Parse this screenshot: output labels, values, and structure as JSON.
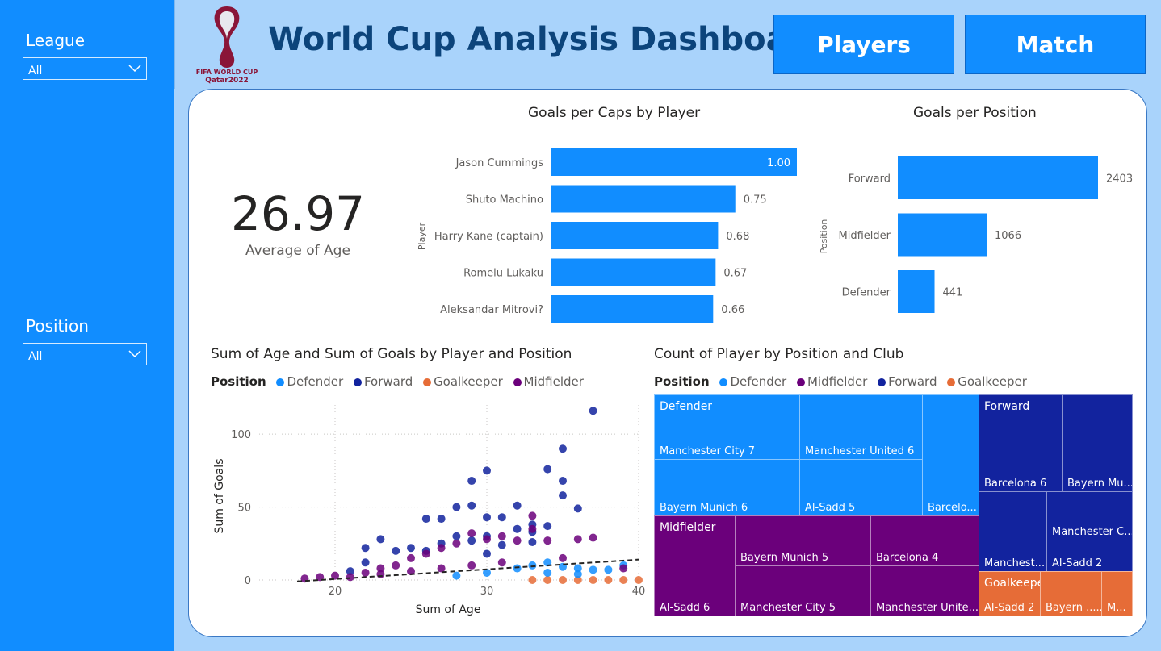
{
  "sidebar": {
    "slicers": [
      {
        "title": "League",
        "value": "All"
      },
      {
        "title": "Position",
        "value": "All"
      }
    ]
  },
  "header": {
    "logo_text_1": "FIFA WORLD CUP",
    "logo_text_2": "Qatar2022",
    "title": "World Cup Analysis Dashboard",
    "nav": [
      "Players",
      "Match"
    ]
  },
  "kpi": {
    "value": "26.97",
    "label": "Average of Age"
  },
  "goals_per_caps": {
    "title": "Goals per Caps by Player",
    "axis_label": "Player",
    "color": "#118dff",
    "players": [
      "Jason Cummings",
      "Shuto Machino",
      "Harry Kane (captain)",
      "Romelu Lukaku",
      "Aleksandar Mitrovi?"
    ],
    "values": [
      1.0,
      0.75,
      0.68,
      0.67,
      0.66
    ],
    "labels": [
      "1.00",
      "0.75",
      "0.68",
      "0.67",
      "0.66"
    ]
  },
  "goals_per_position": {
    "title": "Goals per Position",
    "axis_label": "Position",
    "color": "#118dff",
    "positions": [
      "Forward",
      "Midfielder",
      "Defender"
    ],
    "values": [
      2403,
      1066,
      441
    ],
    "labels": [
      "2403",
      "1066",
      "441"
    ]
  },
  "scatter": {
    "title": "Sum of Age and Sum of Goals by Player and Position",
    "legend_title": "Position",
    "legend": [
      {
        "name": "Defender",
        "color": "#118dff"
      },
      {
        "name": "Forward",
        "color": "#12239e"
      },
      {
        "name": "Goalkeeper",
        "color": "#e66c37"
      },
      {
        "name": "Midfielder",
        "color": "#6b007b"
      }
    ],
    "xlabel": "Sum of Age",
    "ylabel": "Sum of Goals",
    "x_ticks": [
      "20",
      "30",
      "40"
    ],
    "y_ticks": [
      "0",
      "50",
      "100"
    ]
  },
  "treemap": {
    "title": "Count of Player by Position and Club",
    "legend_title": "Position",
    "legend": [
      {
        "name": "Defender",
        "color": "#118dff"
      },
      {
        "name": "Midfielder",
        "color": "#6b007b"
      },
      {
        "name": "Forward",
        "color": "#12239e"
      },
      {
        "name": "Goalkeeper",
        "color": "#e66c37"
      }
    ],
    "groups": [
      "Defender",
      "Forward",
      "Midfielder",
      "Goalkeeper"
    ],
    "cells": {
      "def_mc": "Manchester City 7",
      "def_mu": "Manchester United 6",
      "def_bm": "Bayern Munich 6",
      "def_as": "Al-Sadd 5",
      "def_ba": "Barcelo...",
      "fwd_ba": "Barcelona 6",
      "fwd_bm": "Bayern Mu...",
      "fwd_mc": "Manchester C...",
      "fwd_mn": "Manchest...",
      "fwd_as": "Al-Sadd 2",
      "mid_bm": "Bayern Munich 5",
      "mid_ba": "Barcelona 4",
      "mid_as": "Al-Sadd 6",
      "mid_mc": "Manchester City 5",
      "mid_mu": "Manchester Unite...",
      "gk_as": "Al-Sadd 2",
      "gk_bm": "Bayern ......",
      "gk_m": "M..."
    }
  },
  "chart_data": [
    {
      "type": "bar",
      "title": "Goals per Caps by Player",
      "ylabel": "Player",
      "categories": [
        "Jason Cummings",
        "Shuto Machino",
        "Harry Kane (captain)",
        "Romelu Lukaku",
        "Aleksandar Mitrovi?"
      ],
      "values": [
        1.0,
        0.75,
        0.68,
        0.67,
        0.66
      ]
    },
    {
      "type": "bar",
      "title": "Goals per Position",
      "ylabel": "Position",
      "categories": [
        "Forward",
        "Midfielder",
        "Defender"
      ],
      "values": [
        2403,
        1066,
        441
      ]
    },
    {
      "type": "scatter",
      "title": "Sum of Age and Sum of Goals by Player and Position",
      "xlabel": "Sum of Age",
      "ylabel": "Sum of Goals",
      "xlim": [
        15,
        40
      ],
      "ylim": [
        0,
        120
      ],
      "series": [
        {
          "name": "Forward",
          "x": [
            37,
            30,
            35,
            29,
            34,
            35,
            32,
            30,
            35,
            33,
            28,
            29,
            26,
            27,
            31,
            33,
            34,
            36,
            30,
            32,
            28,
            25,
            24,
            22,
            23,
            27,
            29,
            31,
            26,
            30,
            33,
            21,
            22
          ],
          "y": [
            116,
            75,
            90,
            68,
            76,
            68,
            51,
            43,
            58,
            38,
            50,
            51,
            42,
            42,
            43,
            33,
            37,
            49,
            30,
            35,
            30,
            22,
            20,
            22,
            28,
            25,
            27,
            24,
            20,
            18,
            26,
            6,
            12
          ]
        },
        {
          "name": "Midfielder",
          "x": [
            33,
            37,
            36,
            34,
            32,
            30,
            31,
            29,
            28,
            27,
            26,
            25,
            24,
            23,
            22,
            20,
            19,
            18,
            33,
            35,
            31,
            29,
            27,
            25,
            23,
            21,
            39
          ],
          "y": [
            44,
            29,
            28,
            27,
            27,
            28,
            30,
            32,
            25,
            22,
            18,
            15,
            10,
            8,
            5,
            3,
            2,
            1,
            35,
            15,
            12,
            10,
            8,
            6,
            4,
            2,
            8
          ]
        },
        {
          "name": "Defender",
          "x": [
            34,
            35,
            36,
            37,
            38,
            39,
            33,
            32,
            34,
            36,
            30,
            28
          ],
          "y": [
            12,
            9,
            8,
            7,
            7,
            10,
            10,
            8,
            5,
            4,
            5,
            3
          ]
        },
        {
          "name": "Goalkeeper",
          "x": [
            33,
            34,
            35,
            36,
            37,
            38,
            39,
            40
          ],
          "y": [
            0,
            0,
            0,
            0,
            0,
            0,
            0,
            0
          ]
        }
      ]
    }
  ]
}
